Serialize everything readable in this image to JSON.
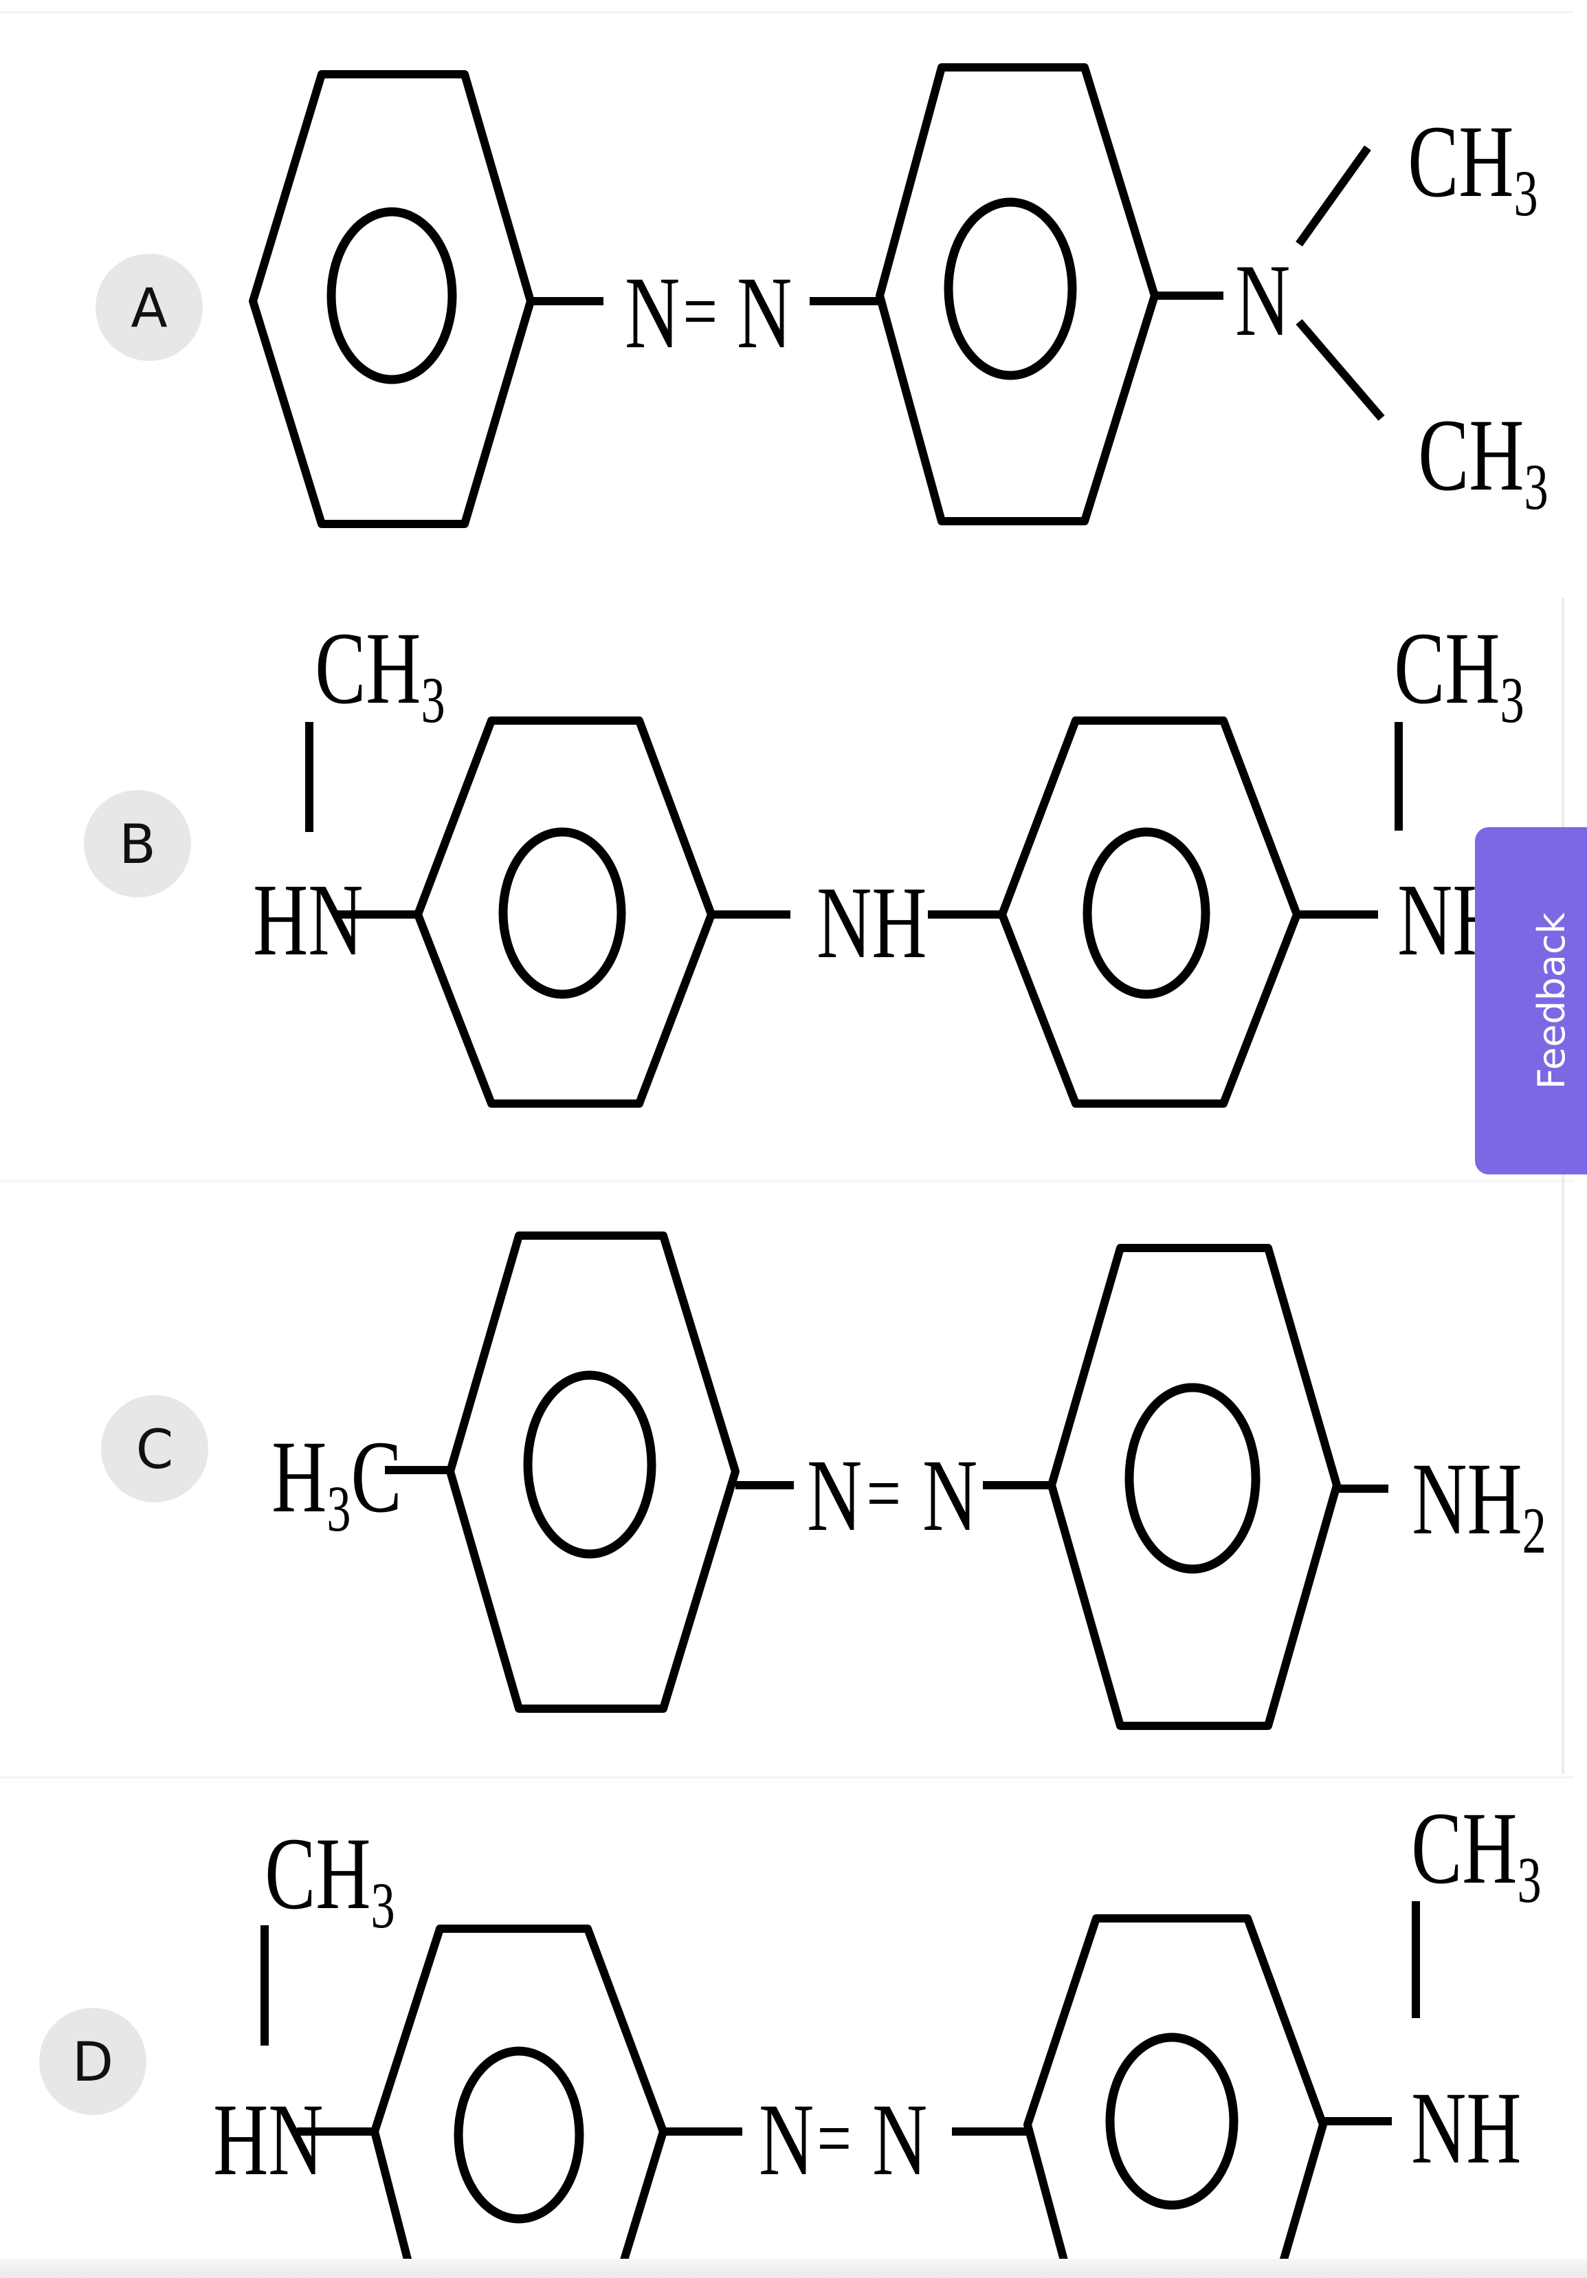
{
  "options": [
    {
      "badge": "A",
      "labels": {
        "azo_n1": "N",
        "azo_eq": "=",
        "azo_n2": "N",
        "amine_n": "N",
        "methyl_top": "CH",
        "methyl_top_sub": "3",
        "methyl_bottom": "CH",
        "methyl_bottom_sub": "3"
      }
    },
    {
      "badge": "B",
      "labels": {
        "left_methyl": "CH",
        "left_methyl_sub": "3",
        "left_amine": "HN",
        "bridge": "NH",
        "right_methyl": "CH",
        "right_methyl_sub": "3",
        "right_amine": "NH"
      }
    },
    {
      "badge": "C",
      "labels": {
        "methyl_h": "H",
        "methyl_sub": "3",
        "methyl_c": "C",
        "azo_n1": "N",
        "azo_eq": "=",
        "azo_n2": "N",
        "amino": "NH",
        "amino_sub": "2"
      }
    },
    {
      "badge": "D",
      "labels": {
        "left_methyl": "CH",
        "left_methyl_sub": "3",
        "left_amine": "HN",
        "azo_n1": "N",
        "azo_eq": "=",
        "azo_n2": "N",
        "right_methyl": "CH",
        "right_methyl_sub": "3",
        "right_amine": "NH"
      }
    }
  ],
  "feedback": {
    "label": "Feedback"
  }
}
